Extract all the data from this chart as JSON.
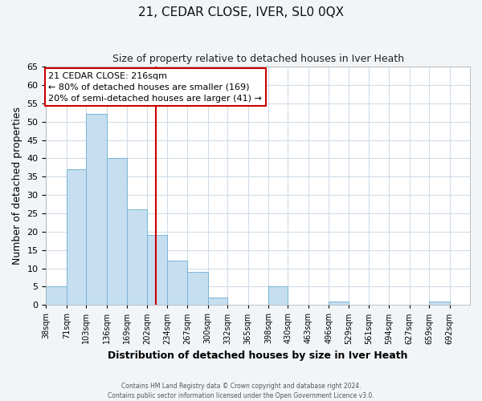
{
  "title": "21, CEDAR CLOSE, IVER, SL0 0QX",
  "subtitle": "Size of property relative to detached houses in Iver Heath",
  "xlabel": "Distribution of detached houses by size in Iver Heath",
  "ylabel": "Number of detached properties",
  "bar_left_edges": [
    38,
    71,
    103,
    136,
    169,
    202,
    234,
    267,
    300,
    332,
    365,
    398,
    430,
    463,
    496,
    529,
    561,
    594,
    627,
    659
  ],
  "bar_widths": [
    33,
    32,
    33,
    33,
    33,
    32,
    33,
    33,
    32,
    33,
    33,
    32,
    33,
    33,
    33,
    32,
    33,
    33,
    32,
    33
  ],
  "bar_heights": [
    5,
    37,
    52,
    40,
    26,
    19,
    12,
    9,
    2,
    0,
    0,
    5,
    0,
    0,
    1,
    0,
    0,
    0,
    0,
    1
  ],
  "tick_labels": [
    "38sqm",
    "71sqm",
    "103sqm",
    "136sqm",
    "169sqm",
    "202sqm",
    "234sqm",
    "267sqm",
    "300sqm",
    "332sqm",
    "365sqm",
    "398sqm",
    "430sqm",
    "463sqm",
    "496sqm",
    "529sqm",
    "561sqm",
    "594sqm",
    "627sqm",
    "659sqm",
    "692sqm"
  ],
  "bar_color": "#c5dff0",
  "bar_edge_color": "#7ab4d4",
  "vline_x": 216,
  "vline_color": "#cc0000",
  "ylim": [
    0,
    65
  ],
  "yticks": [
    0,
    5,
    10,
    15,
    20,
    25,
    30,
    35,
    40,
    45,
    50,
    55,
    60,
    65
  ],
  "annotation_title": "21 CEDAR CLOSE: 216sqm",
  "annotation_line1": "← 80% of detached houses are smaller (169)",
  "annotation_line2": "20% of semi-detached houses are larger (41) →",
  "footer1": "Contains HM Land Registry data © Crown copyright and database right 2024.",
  "footer2": "Contains public sector information licensed under the Open Government Licence v3.0.",
  "bg_color": "#f2f5f8",
  "plot_bg_color": "#ffffff",
  "grid_color": "#d0dce8"
}
